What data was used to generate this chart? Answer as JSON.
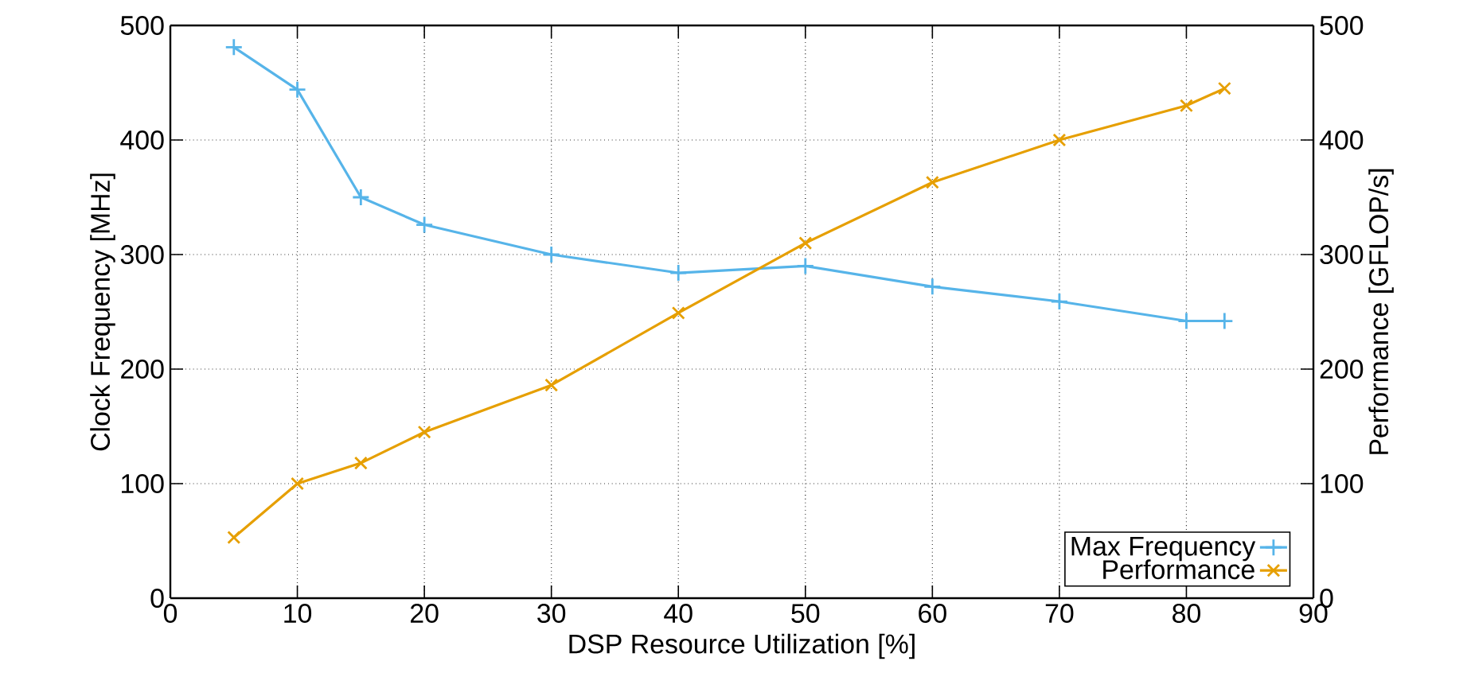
{
  "chart_data": {
    "type": "line",
    "xlabel": "DSP Resource Utilization [%]",
    "ylabel": "Clock Frequency [MHz]",
    "y2label": "Performance [GFLOP/s]",
    "x": [
      5,
      10,
      15,
      20,
      30,
      40,
      50,
      60,
      70,
      80,
      83
    ],
    "series": [
      {
        "name": "Max Frequency",
        "color": "#56b4e9",
        "marker": "plus",
        "values": [
          481,
          444,
          350,
          326,
          300,
          284,
          290,
          272,
          259,
          242,
          242
        ]
      },
      {
        "name": "Performance",
        "color": "#e69f00",
        "marker": "cross",
        "axis": "y2",
        "values": [
          53,
          100,
          118,
          145,
          186,
          249,
          310,
          363,
          400,
          430,
          445
        ]
      }
    ],
    "xlim": [
      0,
      90
    ],
    "xticks": [
      0,
      10,
      20,
      30,
      40,
      50,
      60,
      70,
      80,
      90
    ],
    "ylim": [
      0,
      500
    ],
    "yticks": [
      0,
      100,
      200,
      300,
      400,
      500
    ],
    "y2lim": [
      0,
      500
    ],
    "y2ticks": [
      0,
      100,
      200,
      300,
      400,
      500
    ],
    "grid": true,
    "legend": "bottom right",
    "line_style": "solid"
  }
}
